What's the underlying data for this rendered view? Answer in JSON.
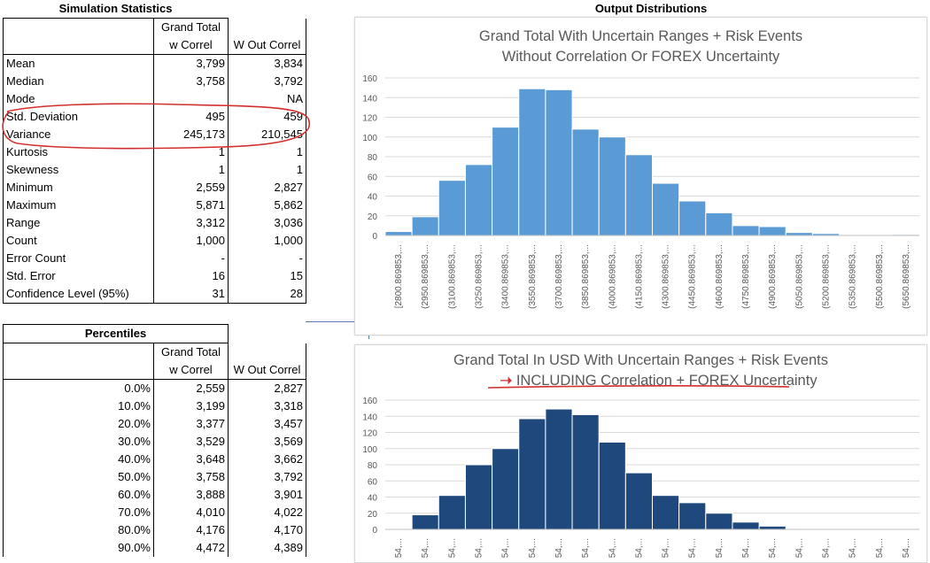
{
  "sim_stats": {
    "title": "Simulation Statistics",
    "col1_header_a": "Grand Total",
    "col1_header_b": "w Correl",
    "col2_header": "W Out Correl",
    "rows": [
      {
        "label": "Mean",
        "v1": "3,799",
        "v2": "3,834"
      },
      {
        "label": "Median",
        "v1": "3,758",
        "v2": "3,792"
      },
      {
        "label": "Mode",
        "v1": "",
        "v2": "NA"
      },
      {
        "label": "Std. Deviation",
        "v1": "495",
        "v2": "459"
      },
      {
        "label": "Variance",
        "v1": "245,173",
        "v2": "210,545"
      },
      {
        "label": "Kurtosis",
        "v1": "1",
        "v2": "1"
      },
      {
        "label": "Skewness",
        "v1": "1",
        "v2": "1"
      },
      {
        "label": "Minimum",
        "v1": "2,559",
        "v2": "2,827"
      },
      {
        "label": "Maximum",
        "v1": "5,871",
        "v2": "5,862"
      },
      {
        "label": "Range",
        "v1": "3,312",
        "v2": "3,036"
      },
      {
        "label": "Count",
        "v1": "1,000",
        "v2": "1,000"
      },
      {
        "label": "Error Count",
        "v1": "-",
        "v2": "-"
      },
      {
        "label": "Std. Error",
        "v1": "16",
        "v2": "15"
      },
      {
        "label": "Confidence Level (95%)",
        "v1": "31",
        "v2": "28"
      }
    ]
  },
  "percentiles": {
    "title": "Percentiles",
    "col1_header_a": "Grand Total",
    "col1_header_b": "w Correl",
    "col2_header": "W Out Correl",
    "rows": [
      {
        "p": "0.0%",
        "v1": "2,559",
        "v2": "2,827"
      },
      {
        "p": "10.0%",
        "v1": "3,199",
        "v2": "3,318"
      },
      {
        "p": "20.0%",
        "v1": "3,377",
        "v2": "3,457"
      },
      {
        "p": "30.0%",
        "v1": "3,529",
        "v2": "3,569"
      },
      {
        "p": "40.0%",
        "v1": "3,648",
        "v2": "3,662"
      },
      {
        "p": "50.0%",
        "v1": "3,758",
        "v2": "3,792"
      },
      {
        "p": "60.0%",
        "v1": "3,888",
        "v2": "3,901"
      },
      {
        "p": "70.0%",
        "v1": "4,010",
        "v2": "4,022"
      },
      {
        "p": "80.0%",
        "v1": "4,176",
        "v2": "4,170"
      },
      {
        "p": "90.0%",
        "v1": "4,472",
        "v2": "4,389"
      }
    ]
  },
  "output_title": "Output Distributions",
  "annotation_color": "#d32f2f",
  "chart_data": [
    {
      "type": "bar",
      "title_line1": "Grand Total With Uncertain Ranges + Risk Events",
      "title_line2": "Without Correlation Or FOREX Uncertainty",
      "color": "#5b9bd5",
      "ylim": [
        0,
        160
      ],
      "yticks": [
        "0",
        "20",
        "40",
        "60",
        "80",
        "100",
        "120",
        "140",
        "160"
      ],
      "categories": [
        "[2800.869853,...",
        "(2950.869853,...",
        "(3100.869853,...",
        "(3250.869853,...",
        "(3400.869853,...",
        "(3550.869853,...",
        "(3700.869853,...",
        "(3850.869853,...",
        "(4000.869853,...",
        "(4150.869853,...",
        "(4300.869853,...",
        "(4450.869853,...",
        "(4600.869853,...",
        "(4750.869853,...",
        "(4900.869853,...",
        "(5050.869853,...",
        "(5200.869853,...",
        "(5350.869853,...",
        "(5500.869853,...",
        "(5650.869853,..."
      ],
      "values": [
        4,
        19,
        56,
        72,
        110,
        149,
        148,
        108,
        100,
        82,
        53,
        35,
        23,
        10,
        9,
        3,
        2,
        0,
        0,
        1
      ]
    },
    {
      "type": "bar",
      "title_line1": "Grand Total In USD With Uncertain Ranges + Risk Events",
      "title_line2": "INCLUDING Correlation + FOREX Uncertainty",
      "color": "#1f497d",
      "ylim": [
        0,
        160
      ],
      "yticks": [
        "0",
        "20",
        "40",
        "60",
        "80",
        "100",
        "120",
        "140",
        "160"
      ],
      "categories": [
        "54,...",
        "54,...",
        "54,...",
        "54,...",
        "54,...",
        "54,...",
        "54,...",
        "54,...",
        "54,...",
        "54,...",
        "54,...",
        "54,...",
        "54,...",
        "54,...",
        "54,...",
        "54,...",
        "54,...",
        "54,...",
        "54,...",
        "54,..."
      ],
      "values": [
        0,
        18,
        42,
        80,
        100,
        137,
        149,
        142,
        108,
        70,
        42,
        33,
        20,
        9,
        4,
        0,
        1,
        0,
        0,
        0
      ]
    }
  ]
}
